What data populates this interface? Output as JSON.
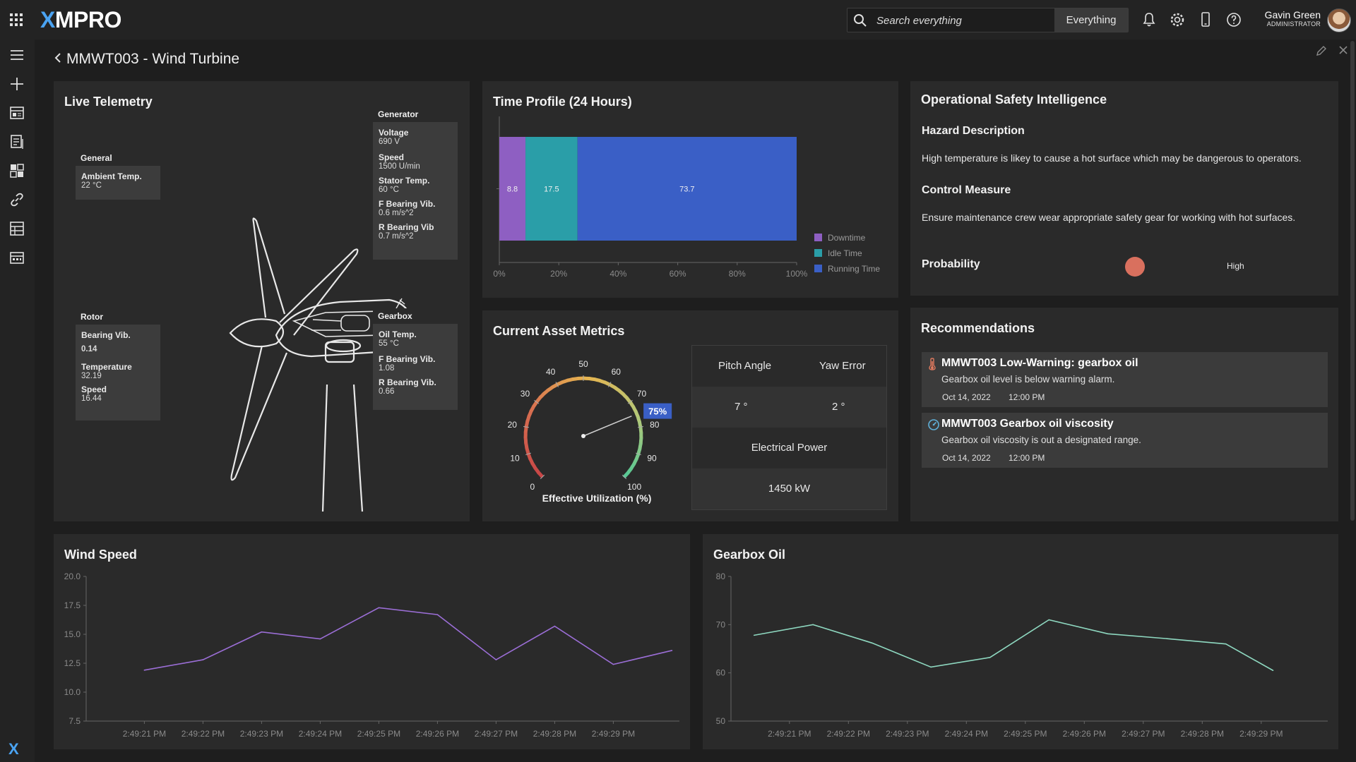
{
  "app": {
    "logo": "XMPRO",
    "logo_x": "X",
    "logo_rest": "MPRO"
  },
  "search": {
    "placeholder": "Search everything",
    "scope": "Everything"
  },
  "user": {
    "name": "Gavin Green",
    "role": "ADMINISTRATOR"
  },
  "page": {
    "title": "MMWT003 - Wind Turbine"
  },
  "live_telemetry": {
    "title": "Live Telemetry",
    "general": {
      "header": "General",
      "items": [
        {
          "label": "Ambient Temp.",
          "value": "22 °C"
        }
      ]
    },
    "generator": {
      "header": "Generator",
      "items": [
        {
          "label": "Voltage",
          "value": "690 V"
        },
        {
          "label": "Speed",
          "value": "1500 U/min"
        },
        {
          "label": "Stator Temp.",
          "value": "60 °C"
        },
        {
          "label": "F Bearing Vib.",
          "value": "0.6 m/s^2"
        },
        {
          "label": "R Bearing Vib",
          "value": "0.7 m/s^2"
        }
      ]
    },
    "rotor": {
      "header": "Rotor",
      "items": [
        {
          "label": "Bearing Vib.",
          "value": "0.14"
        },
        {
          "label": "Temperature",
          "value": "32.19"
        },
        {
          "label": "Speed",
          "value": "16.44"
        }
      ]
    },
    "gearbox": {
      "header": "Gearbox",
      "items": [
        {
          "label": "Oil Temp.",
          "value": "55 °C"
        },
        {
          "label": "F Bearing Vib.",
          "value": "1.08"
        },
        {
          "label": "R Bearing Vib.",
          "value": "0.66"
        }
      ]
    }
  },
  "time_profile": {
    "title": "Time Profile (24 Hours)",
    "legend": [
      "Downtime",
      "Idle Time",
      "Running Time"
    ],
    "tick_labels": [
      "0%",
      "20%",
      "40%",
      "60%",
      "80%",
      "100%"
    ]
  },
  "asset_metrics": {
    "title": "Current Asset Metrics",
    "gauge_label": "Effective Utilization (%)",
    "gauge_value_text": "75%",
    "gauge_ticks": [
      "0",
      "10",
      "20",
      "30",
      "40",
      "50",
      "60",
      "70",
      "80",
      "90",
      "100"
    ],
    "pitch_label": "Pitch Angle",
    "yaw_label": "Yaw Error",
    "pitch_value": "7 °",
    "yaw_value": "2 °",
    "power_label": "Electrical Power",
    "power_value": "1450 kW"
  },
  "safety": {
    "title": "Operational Safety Intelligence",
    "hazard_heading": "Hazard Description",
    "hazard_text": "High temperature is likey to cause a hot surface which may be dangerous to operators.",
    "control_heading": "Control Measure",
    "control_text": "Ensure maintenance crew wear appropriate safety gear for working with hot surfaces.",
    "probability_label": "Probability",
    "probability_value": "High",
    "probability_color": "#d9705e"
  },
  "recommendations": {
    "title": "Recommendations",
    "items": [
      {
        "icon": "thermometer-icon",
        "title": "MMWT003 Low-Warning: gearbox oil",
        "desc": "Gearbox oil level is below warning alarm.",
        "date": "Oct 14, 2022",
        "time": "12:00 PM"
      },
      {
        "icon": "gauge-icon",
        "title": "MMWT003 Gearbox oil viscosity",
        "desc": "Gearbox oil viscosity is out a designated range.",
        "date": "Oct 14, 2022",
        "time": "12:00 PM"
      }
    ]
  },
  "wind_speed": {
    "title": "Wind Speed"
  },
  "gearbox_oil": {
    "title": "Gearbox Oil"
  },
  "chart_data": [
    {
      "type": "bar",
      "title": "Time Profile (24 Hours)",
      "orientation": "horizontal-stacked",
      "series": [
        {
          "name": "Downtime",
          "values": [
            8.8
          ],
          "color": "#8e5fc2"
        },
        {
          "name": "Idle Time",
          "values": [
            17.5
          ],
          "color": "#2a9ea8"
        },
        {
          "name": "Running Time",
          "values": [
            73.7
          ],
          "color": "#3a5fc6"
        }
      ],
      "xlim": [
        0,
        100
      ],
      "legend": "right"
    },
    {
      "type": "gauge",
      "title": "Effective Utilization (%)",
      "value": 75,
      "range": [
        0,
        100
      ]
    },
    {
      "type": "line",
      "title": "Wind Speed",
      "x": [
        "2:49:21 PM",
        "2:49:22 PM",
        "2:49:23 PM",
        "2:49:24 PM",
        "2:49:25 PM",
        "2:49:26 PM",
        "2:49:27 PM",
        "2:49:28 PM",
        "2:49:29 PM"
      ],
      "points": [
        {
          "t": 0.8,
          "v": 11.9
        },
        {
          "t": 1.8,
          "v": 12.8
        },
        {
          "t": 2.8,
          "v": 15.2
        },
        {
          "t": 3.8,
          "v": 14.6
        },
        {
          "t": 4.8,
          "v": 17.3
        },
        {
          "t": 5.8,
          "v": 16.7
        },
        {
          "t": 6.8,
          "v": 12.8
        },
        {
          "t": 7.8,
          "v": 15.7
        },
        {
          "t": 8.8,
          "v": 12.4
        },
        {
          "t": 9.8,
          "v": 13.6
        }
      ],
      "ylim": [
        7.5,
        20.0
      ],
      "yticks": [
        "20.0",
        "17.5",
        "15.0",
        "12.5",
        "10.0",
        "7.5"
      ],
      "color": "#9b6ed6"
    },
    {
      "type": "line",
      "title": "Gearbox Oil",
      "x": [
        "2:49:21 PM",
        "2:49:22 PM",
        "2:49:23 PM",
        "2:49:24 PM",
        "2:49:25 PM",
        "2:49:26 PM",
        "2:49:27 PM",
        "2:49:28 PM",
        "2:49:29 PM"
      ],
      "points": [
        {
          "t": 0.2,
          "v": 67.8
        },
        {
          "t": 1.2,
          "v": 70.0
        },
        {
          "t": 2.2,
          "v": 66.2
        },
        {
          "t": 3.2,
          "v": 61.2
        },
        {
          "t": 4.2,
          "v": 63.2
        },
        {
          "t": 5.2,
          "v": 71.0
        },
        {
          "t": 6.2,
          "v": 68.1
        },
        {
          "t": 7.2,
          "v": 67.1
        },
        {
          "t": 8.2,
          "v": 66.0
        },
        {
          "t": 9.0,
          "v": 60.5
        }
      ],
      "ylim": [
        50,
        80
      ],
      "yticks": [
        "80",
        "70",
        "60",
        "50"
      ],
      "color": "#8ed8c0"
    }
  ]
}
